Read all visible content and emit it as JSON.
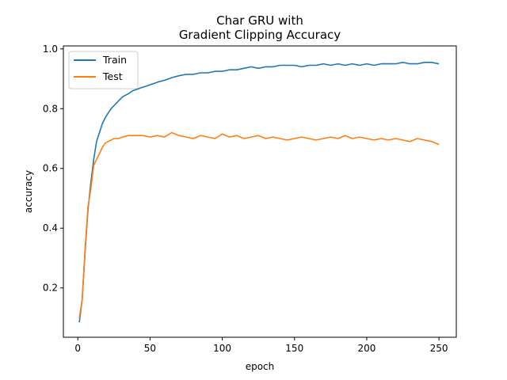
{
  "chart_data": {
    "type": "line",
    "title_lines": [
      "Char GRU with",
      "Gradient Clipping Accuracy"
    ],
    "xlabel": "epoch",
    "ylabel": "accuracy",
    "xlim": [
      -10,
      262
    ],
    "ylim": [
      0.035,
      1.01
    ],
    "xticks": [
      0,
      50,
      100,
      150,
      200,
      250
    ],
    "yticks": [
      0.2,
      0.4,
      0.6,
      0.8,
      1.0
    ],
    "ytick_labels": [
      "0.2",
      "0.4",
      "0.6",
      "0.8",
      "1.0"
    ],
    "grid": false,
    "legend_position": "top-left",
    "series": [
      {
        "name": "Train",
        "color": "#1f77b4",
        "points": [
          [
            1,
            0.085
          ],
          [
            3,
            0.16
          ],
          [
            5,
            0.32
          ],
          [
            7,
            0.46
          ],
          [
            9,
            0.55
          ],
          [
            11,
            0.63
          ],
          [
            13,
            0.69
          ],
          [
            15,
            0.72
          ],
          [
            17,
            0.75
          ],
          [
            19,
            0.77
          ],
          [
            21,
            0.785
          ],
          [
            23,
            0.8
          ],
          [
            25,
            0.81
          ],
          [
            27,
            0.82
          ],
          [
            29,
            0.83
          ],
          [
            31,
            0.84
          ],
          [
            33,
            0.845
          ],
          [
            35,
            0.85
          ],
          [
            38,
            0.86
          ],
          [
            41,
            0.865
          ],
          [
            44,
            0.87
          ],
          [
            47,
            0.875
          ],
          [
            50,
            0.88
          ],
          [
            53,
            0.885
          ],
          [
            56,
            0.89
          ],
          [
            60,
            0.895
          ],
          [
            63,
            0.9
          ],
          [
            66,
            0.905
          ],
          [
            70,
            0.91
          ],
          [
            75,
            0.915
          ],
          [
            80,
            0.915
          ],
          [
            85,
            0.92
          ],
          [
            90,
            0.92
          ],
          [
            95,
            0.925
          ],
          [
            100,
            0.925
          ],
          [
            105,
            0.93
          ],
          [
            110,
            0.93
          ],
          [
            115,
            0.935
          ],
          [
            120,
            0.94
          ],
          [
            125,
            0.935
          ],
          [
            130,
            0.94
          ],
          [
            135,
            0.94
          ],
          [
            140,
            0.945
          ],
          [
            145,
            0.945
          ],
          [
            150,
            0.945
          ],
          [
            155,
            0.94
          ],
          [
            160,
            0.945
          ],
          [
            165,
            0.945
          ],
          [
            170,
            0.95
          ],
          [
            175,
            0.945
          ],
          [
            180,
            0.95
          ],
          [
            185,
            0.945
          ],
          [
            190,
            0.95
          ],
          [
            195,
            0.945
          ],
          [
            200,
            0.95
          ],
          [
            205,
            0.945
          ],
          [
            210,
            0.95
          ],
          [
            215,
            0.95
          ],
          [
            220,
            0.95
          ],
          [
            225,
            0.955
          ],
          [
            230,
            0.95
          ],
          [
            235,
            0.95
          ],
          [
            240,
            0.955
          ],
          [
            245,
            0.955
          ],
          [
            250,
            0.95
          ]
        ]
      },
      {
        "name": "Test",
        "color": "#ff7f0e",
        "points": [
          [
            1,
            0.1
          ],
          [
            3,
            0.16
          ],
          [
            5,
            0.33
          ],
          [
            7,
            0.47
          ],
          [
            9,
            0.53
          ],
          [
            11,
            0.61
          ],
          [
            13,
            0.63
          ],
          [
            15,
            0.65
          ],
          [
            17,
            0.67
          ],
          [
            19,
            0.685
          ],
          [
            21,
            0.69
          ],
          [
            23,
            0.695
          ],
          [
            25,
            0.7
          ],
          [
            28,
            0.7
          ],
          [
            31,
            0.705
          ],
          [
            35,
            0.71
          ],
          [
            40,
            0.71
          ],
          [
            45,
            0.71
          ],
          [
            50,
            0.705
          ],
          [
            55,
            0.71
          ],
          [
            60,
            0.705
          ],
          [
            65,
            0.72
          ],
          [
            70,
            0.71
          ],
          [
            75,
            0.705
          ],
          [
            80,
            0.7
          ],
          [
            85,
            0.71
          ],
          [
            90,
            0.705
          ],
          [
            95,
            0.7
          ],
          [
            100,
            0.715
          ],
          [
            105,
            0.705
          ],
          [
            110,
            0.71
          ],
          [
            115,
            0.7
          ],
          [
            120,
            0.705
          ],
          [
            125,
            0.71
          ],
          [
            130,
            0.7
          ],
          [
            135,
            0.705
          ],
          [
            140,
            0.7
          ],
          [
            145,
            0.695
          ],
          [
            150,
            0.7
          ],
          [
            155,
            0.705
          ],
          [
            160,
            0.7
          ],
          [
            165,
            0.695
          ],
          [
            170,
            0.7
          ],
          [
            175,
            0.705
          ],
          [
            180,
            0.7
          ],
          [
            185,
            0.71
          ],
          [
            190,
            0.7
          ],
          [
            195,
            0.705
          ],
          [
            200,
            0.7
          ],
          [
            205,
            0.695
          ],
          [
            210,
            0.7
          ],
          [
            215,
            0.695
          ],
          [
            220,
            0.7
          ],
          [
            225,
            0.695
          ],
          [
            230,
            0.69
          ],
          [
            235,
            0.7
          ],
          [
            240,
            0.695
          ],
          [
            245,
            0.69
          ],
          [
            250,
            0.68
          ]
        ]
      }
    ]
  }
}
